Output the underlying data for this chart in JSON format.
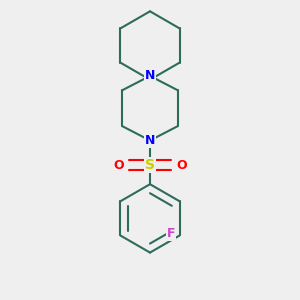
{
  "bg_color": "#efefef",
  "bond_color": "#2d6b5a",
  "bond_width": 1.5,
  "N_color": "#0000ff",
  "S_color": "#cccc00",
  "O_color": "#ff0000",
  "F_color": "#cc44cc",
  "font_size": 9,
  "fig_width": 3.0,
  "fig_height": 3.0,
  "xlim": [
    -1.8,
    1.8
  ],
  "ylim": [
    -3.2,
    3.0
  ]
}
